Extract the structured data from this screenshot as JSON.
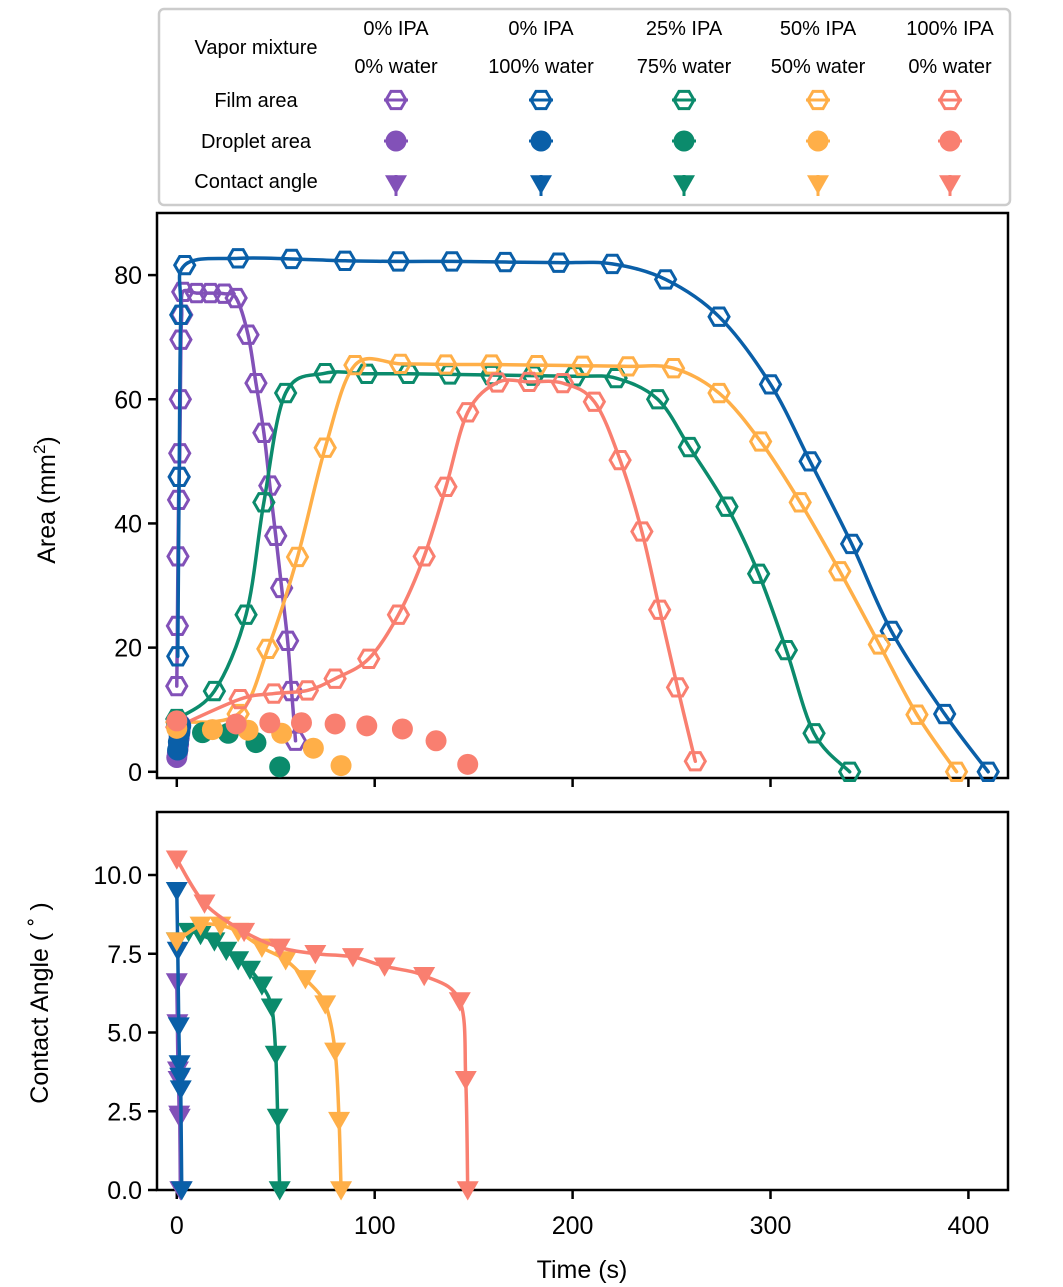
{
  "legend": {
    "header_label": "Vapor mixture",
    "row_labels": [
      "Film area",
      "Droplet area",
      "Contact angle"
    ],
    "columns": [
      {
        "line1": "0% IPA",
        "line2": "0% water",
        "color": "#8251b8"
      },
      {
        "line1": "0% IPA",
        "line2": "100% water",
        "color": "#0a5fa8"
      },
      {
        "line1": "25% IPA",
        "line2": "75% water",
        "color": "#0b8b6c"
      },
      {
        "line1": "50% IPA",
        "line2": "50% water",
        "color": "#ffaf48"
      },
      {
        "line1": "100% IPA",
        "line2": "0% water",
        "color": "#f97f70"
      }
    ]
  },
  "x_axis": {
    "label": "Time (s)",
    "ticks": [
      0,
      100,
      200,
      300,
      400
    ],
    "tick_labels": [
      "0",
      "100",
      "200",
      "300",
      "400"
    ]
  },
  "chart_data": [
    {
      "type": "line",
      "ylabel_main": "Area (mm",
      "ylabel_sup": "2",
      "ylabel_tail": ")",
      "xlim": [
        -10,
        420
      ],
      "ylim": [
        -1,
        90
      ],
      "yticks": [
        0,
        20,
        40,
        60,
        80
      ],
      "ytick_labels": [
        "0",
        "20",
        "40",
        "60",
        "80"
      ],
      "series": [
        {
          "kind": "film",
          "color": "#8251b8",
          "points": [
            [
              0,
              13.8
            ],
            [
              0.3,
              23.5
            ],
            [
              0.6,
              34.7
            ],
            [
              0.9,
              43.8
            ],
            [
              1.2,
              47.5
            ],
            [
              1.5,
              51.3
            ],
            [
              1.8,
              60.0
            ],
            [
              2.1,
              69.6
            ],
            [
              2.5,
              73.6
            ],
            [
              3,
              77.3
            ],
            [
              10,
              77.1
            ],
            [
              17,
              77.1
            ],
            [
              24,
              77.0
            ],
            [
              30,
              76.3
            ],
            [
              36,
              70.4
            ],
            [
              40,
              62.6
            ],
            [
              44,
              54.6
            ],
            [
              47,
              46.1
            ],
            [
              50,
              38.0
            ],
            [
              53,
              29.6
            ],
            [
              56,
              21.1
            ],
            [
              58,
              13.0
            ],
            [
              60,
              5.0
            ]
          ]
        },
        {
          "kind": "film",
          "color": "#0a5fa8",
          "points": [
            [
              0.5,
              18.6
            ],
            [
              1.2,
              47.5
            ],
            [
              2,
              73.6
            ],
            [
              4,
              81.6
            ],
            [
              31,
              82.7
            ],
            [
              58,
              82.6
            ],
            [
              85,
              82.3
            ],
            [
              112,
              82.2
            ],
            [
              139,
              82.2
            ],
            [
              166,
              82.1
            ],
            [
              193,
              82.0
            ],
            [
              220,
              81.8
            ],
            [
              247,
              79.3
            ],
            [
              274,
              73.3
            ],
            [
              300,
              62.4
            ],
            [
              320,
              50.0
            ],
            [
              341,
              36.7
            ],
            [
              361,
              22.7
            ],
            [
              388,
              9.3
            ],
            [
              410,
              0
            ]
          ]
        },
        {
          "kind": "film",
          "color": "#0b8b6c",
          "points": [
            [
              0,
              8.5
            ],
            [
              19,
              13.0
            ],
            [
              35,
              25.3
            ],
            [
              44,
              43.4
            ],
            [
              55,
              61.0
            ],
            [
              75,
              64.2
            ],
            [
              96,
              64.1
            ],
            [
              117,
              64.1
            ],
            [
              138,
              64.0
            ],
            [
              159,
              63.9
            ],
            [
              180,
              63.8
            ],
            [
              201,
              63.7
            ],
            [
              222,
              63.4
            ],
            [
              243,
              60.0
            ],
            [
              259,
              52.3
            ],
            [
              278,
              42.7
            ],
            [
              294,
              31.9
            ],
            [
              308,
              19.6
            ],
            [
              322,
              6.2
            ],
            [
              340,
              0
            ]
          ]
        },
        {
          "kind": "film",
          "color": "#ffaf48",
          "points": [
            [
              0,
              8.0
            ],
            [
              31,
              9.3
            ],
            [
              46,
              19.8
            ],
            [
              61,
              34.6
            ],
            [
              75,
              52.2
            ],
            [
              90,
              65.5
            ],
            [
              113,
              65.7
            ],
            [
              136,
              65.6
            ],
            [
              159,
              65.6
            ],
            [
              182,
              65.5
            ],
            [
              205,
              65.4
            ],
            [
              228,
              65.3
            ],
            [
              251,
              65.0
            ],
            [
              274,
              61.0
            ],
            [
              295,
              53.2
            ],
            [
              315,
              43.4
            ],
            [
              335,
              32.3
            ],
            [
              355,
              20.5
            ],
            [
              374,
              9.2
            ],
            [
              394,
              0
            ]
          ]
        },
        {
          "kind": "film",
          "color": "#f97f70",
          "points": [
            [
              0,
              7.2
            ],
            [
              32,
              11.7
            ],
            [
              49,
              12.6
            ],
            [
              66,
              13.1
            ],
            [
              80,
              15.0
            ],
            [
              97,
              18.2
            ],
            [
              112,
              25.3
            ],
            [
              125,
              34.7
            ],
            [
              136,
              45.9
            ],
            [
              147,
              57.9
            ],
            [
              162,
              62.7
            ],
            [
              178,
              62.8
            ],
            [
              195,
              62.6
            ],
            [
              211,
              59.6
            ],
            [
              224,
              50.2
            ],
            [
              235,
              38.7
            ],
            [
              244,
              26.1
            ],
            [
              253,
              13.6
            ],
            [
              262,
              1.7
            ]
          ]
        },
        {
          "kind": "drop",
          "color": "#8251b8",
          "points": [
            [
              0,
              2.3
            ],
            [
              0.3,
              3.0
            ],
            [
              0.6,
              3.6
            ],
            [
              0.9,
              4.4
            ],
            [
              1.2,
              5.4
            ],
            [
              1.5,
              6.2
            ],
            [
              1.8,
              7.6
            ]
          ]
        },
        {
          "kind": "drop",
          "color": "#0a5fa8",
          "points": [
            [
              0.4,
              3.5
            ],
            [
              0.8,
              4.8
            ],
            [
              1.2,
              5.9
            ],
            [
              1.6,
              6.6
            ],
            [
              2,
              7.4
            ]
          ]
        },
        {
          "kind": "drop",
          "color": "#0b8b6c",
          "points": [
            [
              0,
              7.8
            ],
            [
              13,
              6.3
            ],
            [
              26,
              6.2
            ],
            [
              40,
              4.7
            ],
            [
              52,
              0.8
            ]
          ]
        },
        {
          "kind": "drop",
          "color": "#ffaf48",
          "points": [
            [
              0,
              7.0
            ],
            [
              18,
              6.8
            ],
            [
              36,
              6.7
            ],
            [
              53,
              6.2
            ],
            [
              69,
              3.8
            ],
            [
              83,
              1.0
            ]
          ]
        },
        {
          "kind": "drop",
          "color": "#f97f70",
          "points": [
            [
              0,
              8.2
            ],
            [
              30,
              7.7
            ],
            [
              47,
              7.9
            ],
            [
              63,
              7.9
            ],
            [
              80,
              7.7
            ],
            [
              96,
              7.4
            ],
            [
              114,
              6.9
            ],
            [
              131,
              5.0
            ],
            [
              147,
              1.2
            ]
          ]
        }
      ]
    },
    {
      "type": "line",
      "ylabel": "Contact Angle ( ˚ )",
      "xlim": [
        -10,
        420
      ],
      "ylim": [
        0,
        12
      ],
      "yticks": [
        0,
        2.5,
        5.0,
        7.5,
        10.0
      ],
      "ytick_labels": [
        "0.0",
        "2.5",
        "5.0",
        "7.5",
        "10.0"
      ],
      "series": [
        {
          "kind": "angle",
          "color": "#8251b8",
          "points": [
            [
              0,
              6.6
            ],
            [
              0.3,
              5.3
            ],
            [
              0.6,
              3.8
            ],
            [
              0.9,
              3.5
            ],
            [
              1.2,
              2.4
            ],
            [
              1.5,
              2.3
            ],
            [
              1.8,
              0
            ]
          ]
        },
        {
          "kind": "angle",
          "color": "#0a5fa8",
          "points": [
            [
              0,
              9.5
            ],
            [
              0.5,
              7.6
            ],
            [
              1,
              5.2
            ],
            [
              1.4,
              4.0
            ],
            [
              1.7,
              3.6
            ],
            [
              2,
              3.2
            ],
            [
              2.5,
              0
            ]
          ]
        },
        {
          "kind": "angle",
          "color": "#0b8b6c",
          "points": [
            [
              0,
              7.9
            ],
            [
              6,
              8.2
            ],
            [
              12,
              8.1
            ],
            [
              19,
              7.9
            ],
            [
              25,
              7.6
            ],
            [
              31,
              7.3
            ],
            [
              37,
              7.0
            ],
            [
              43,
              6.5
            ],
            [
              48,
              5.8
            ],
            [
              50,
              4.3
            ],
            [
              51,
              2.3
            ],
            [
              52,
              0
            ]
          ]
        },
        {
          "kind": "angle",
          "color": "#ffaf48",
          "points": [
            [
              0,
              7.9
            ],
            [
              12,
              8.4
            ],
            [
              22,
              8.4
            ],
            [
              31,
              8.2
            ],
            [
              43,
              7.7
            ],
            [
              55,
              7.3
            ],
            [
              65,
              6.7
            ],
            [
              75,
              5.9
            ],
            [
              80,
              4.4
            ],
            [
              82,
              2.2
            ],
            [
              83,
              0
            ]
          ]
        },
        {
          "kind": "angle",
          "color": "#f97f70",
          "points": [
            [
              0,
              10.5
            ],
            [
              14,
              9.1
            ],
            [
              34,
              8.2
            ],
            [
              52,
              7.7
            ],
            [
              70,
              7.5
            ],
            [
              89,
              7.4
            ],
            [
              105,
              7.1
            ],
            [
              125,
              6.8
            ],
            [
              143,
              6.0
            ],
            [
              146,
              3.5
            ],
            [
              147,
              0
            ]
          ]
        }
      ]
    }
  ]
}
